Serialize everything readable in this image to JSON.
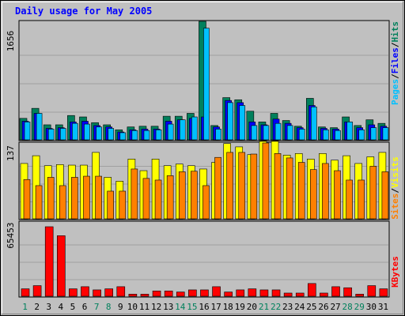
{
  "title": "Daily usage for May 2005",
  "colors": {
    "hits": "#00805c",
    "files": "#0000ff",
    "pages": "#00c0ff",
    "visits": "#ffff00",
    "sites": "#ff8000",
    "kbytes": "#ff0000",
    "weekend_label": "#00805c",
    "weekday_label": "#000000",
    "grid": "#a0a0a0",
    "plot_bg": "#c0c0c0"
  },
  "chart_data": [
    {
      "type": "bar",
      "panel": "hits-files-pages",
      "ylim": [
        0,
        1656
      ],
      "max_label": "1656",
      "legend": [
        "Pages",
        "/",
        "Files",
        "/",
        "Hits"
      ],
      "categories": [
        "1",
        "2",
        "3",
        "4",
        "5",
        "6",
        "7",
        "8",
        "9",
        "10",
        "11",
        "12",
        "13",
        "14",
        "15",
        "16",
        "17",
        "18",
        "19",
        "20",
        "21",
        "22",
        "23",
        "24",
        "25",
        "26",
        "27",
        "28",
        "29",
        "30",
        "31"
      ],
      "series": [
        {
          "name": "Hits",
          "values": [
            300,
            440,
            210,
            210,
            340,
            320,
            240,
            210,
            140,
            180,
            190,
            190,
            330,
            330,
            370,
            1656,
            200,
            590,
            560,
            400,
            250,
            370,
            270,
            190,
            580,
            180,
            170,
            320,
            200,
            280,
            230
          ]
        },
        {
          "name": "Files",
          "values": [
            260,
            370,
            160,
            170,
            250,
            260,
            200,
            180,
            110,
            140,
            150,
            150,
            260,
            280,
            300,
            320,
            180,
            550,
            520,
            250,
            210,
            290,
            230,
            170,
            480,
            160,
            150,
            250,
            170,
            210,
            190
          ]
        },
        {
          "name": "Pages",
          "values": [
            250,
            370,
            150,
            160,
            230,
            220,
            180,
            160,
            100,
            130,
            130,
            140,
            220,
            280,
            320,
            1560,
            150,
            520,
            480,
            200,
            200,
            230,
            200,
            150,
            460,
            140,
            130,
            250,
            140,
            170,
            170
          ]
        }
      ]
    },
    {
      "type": "bar",
      "panel": "visits-sites",
      "ylim": [
        0,
        137
      ],
      "max_label": "137",
      "legend": [
        "Sites",
        "/",
        "Visits"
      ],
      "categories": [
        "1",
        "2",
        "3",
        "4",
        "5",
        "6",
        "7",
        "8",
        "9",
        "10",
        "11",
        "12",
        "13",
        "14",
        "15",
        "16",
        "17",
        "18",
        "19",
        "20",
        "21",
        "22",
        "23",
        "24",
        "25",
        "26",
        "27",
        "28",
        "29",
        "30",
        "31"
      ],
      "series": [
        {
          "name": "Visits",
          "values": [
            100,
            114,
            96,
            98,
            97,
            97,
            120,
            75,
            68,
            108,
            87,
            108,
            96,
            99,
            96,
            90,
            102,
            136,
            130,
            116,
            140,
            140,
            115,
            118,
            108,
            118,
            106,
            114,
            100,
            112,
            120
          ]
        },
        {
          "name": "Sites",
          "values": [
            71,
            60,
            75,
            60,
            75,
            77,
            77,
            50,
            50,
            90,
            73,
            70,
            78,
            85,
            86,
            60,
            111,
            120,
            120,
            117,
            137,
            118,
            110,
            102,
            89,
            100,
            87,
            70,
            70,
            95,
            85
          ]
        }
      ]
    },
    {
      "type": "bar",
      "panel": "kbytes",
      "ylim": [
        0,
        65453
      ],
      "max_label": "65453",
      "legend": [
        "KBytes"
      ],
      "categories": [
        "1",
        "2",
        "3",
        "4",
        "5",
        "6",
        "7",
        "8",
        "9",
        "10",
        "11",
        "12",
        "13",
        "14",
        "15",
        "16",
        "17",
        "18",
        "19",
        "20",
        "21",
        "22",
        "23",
        "24",
        "25",
        "26",
        "27",
        "28",
        "29",
        "30",
        "31"
      ],
      "series": [
        {
          "name": "KBytes",
          "values": [
            7000,
            10000,
            65453,
            57000,
            7000,
            9000,
            6000,
            7000,
            9000,
            2000,
            2000,
            5000,
            5000,
            4000,
            6000,
            6000,
            9000,
            4000,
            6000,
            7000,
            6000,
            6000,
            3000,
            3000,
            12000,
            3000,
            9000,
            8000,
            2000,
            10000,
            7000
          ]
        }
      ]
    }
  ],
  "weekend_days": [
    1,
    7,
    8,
    14,
    15,
    21,
    22,
    28,
    29
  ]
}
